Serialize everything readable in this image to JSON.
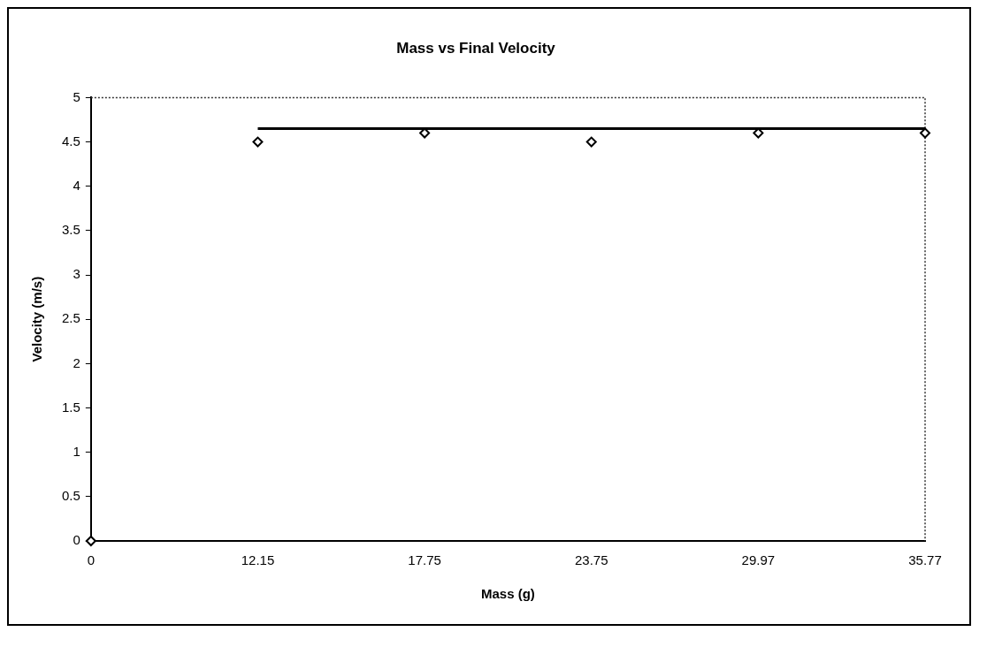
{
  "chart_data": {
    "type": "scatter",
    "title": "Mass vs Final Velocity",
    "xlabel": "Mass (g)",
    "ylabel": "Velocity (m/s)",
    "categories": [
      "0",
      "12.15",
      "17.75",
      "23.75",
      "29.97",
      "35.77"
    ],
    "series": [
      {
        "color": "#000000",
        "marker": "diamond",
        "values": [
          0,
          4.5,
          4.6,
          4.5,
          4.6,
          4.6
        ]
      },
      {
        "type": "line",
        "color": "#000000",
        "marker": "none",
        "line_style": "solid",
        "values": [
          null,
          4.65,
          4.65,
          4.65,
          4.65,
          4.65
        ]
      }
    ],
    "ylim": [
      0,
      5
    ],
    "yticks": [
      0,
      0.5,
      1,
      1.5,
      2,
      2.5,
      3,
      3.5,
      4,
      4.5,
      5
    ],
    "grid": false,
    "legend": false
  }
}
